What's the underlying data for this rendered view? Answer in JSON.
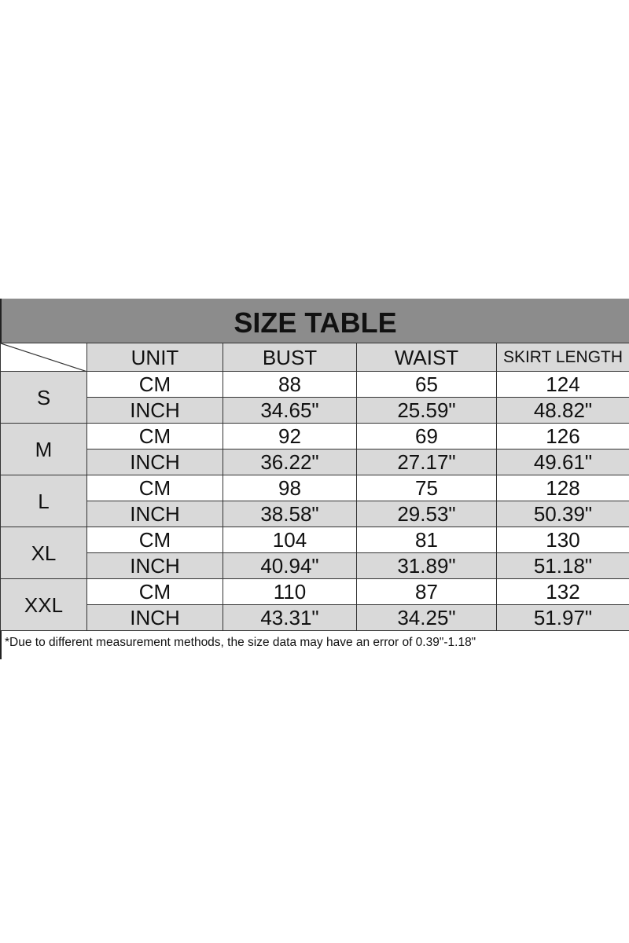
{
  "title": "SIZE TABLE",
  "headers": [
    "UNIT",
    "BUST",
    "WAIST",
    "SKIRT LENGTH"
  ],
  "sizes": [
    {
      "size": "S",
      "rows": [
        {
          "unit": "CM",
          "bust": "88",
          "waist": "65",
          "skirt_length": "124"
        },
        {
          "unit": "INCH",
          "bust": "34.65\"",
          "waist": "25.59\"",
          "skirt_length": "48.82\""
        }
      ]
    },
    {
      "size": "M",
      "rows": [
        {
          "unit": "CM",
          "bust": "92",
          "waist": "69",
          "skirt_length": "126"
        },
        {
          "unit": "INCH",
          "bust": "36.22\"",
          "waist": "27.17\"",
          "skirt_length": "49.61\""
        }
      ]
    },
    {
      "size": "L",
      "rows": [
        {
          "unit": "CM",
          "bust": "98",
          "waist": "75",
          "skirt_length": "128"
        },
        {
          "unit": "INCH",
          "bust": "38.58\"",
          "waist": "29.53\"",
          "skirt_length": "50.39\""
        }
      ]
    },
    {
      "size": "XL",
      "rows": [
        {
          "unit": "CM",
          "bust": "104",
          "waist": "81",
          "skirt_length": "130"
        },
        {
          "unit": "INCH",
          "bust": "40.94\"",
          "waist": "31.89\"",
          "skirt_length": "51.18\""
        }
      ]
    },
    {
      "size": "XXL",
      "rows": [
        {
          "unit": "CM",
          "bust": "110",
          "waist": "87",
          "skirt_length": "132"
        },
        {
          "unit": "INCH",
          "bust": "43.31\"",
          "waist": "34.25\"",
          "skirt_length": "51.97\""
        }
      ]
    }
  ],
  "note": "*Due to different measurement methods, the size data may have an error of 0.39\"-1.18\"",
  "colors": {
    "title_band": "#8c8c8c",
    "shaded_cell": "#d9d9d9"
  }
}
